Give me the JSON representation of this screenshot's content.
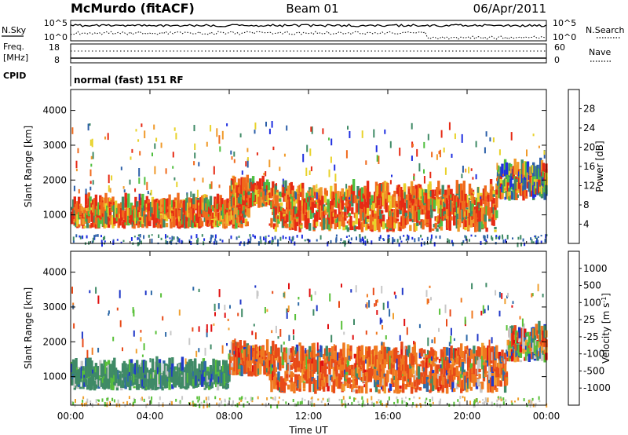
{
  "header": {
    "station": "McMurdo (fitACF)",
    "beam": "Beam 01",
    "date": "06/Apr/2011"
  },
  "noise_panel": {
    "left_label": "N.Sky",
    "right_label": "N.Search",
    "left_ticks": [
      "10^5",
      "10^0"
    ],
    "right_ticks": [
      "10^5",
      "10^0"
    ]
  },
  "freq_panel": {
    "left_label_1": "Freq.",
    "left_label_2": "[MHz]",
    "left_ticks": [
      "18",
      "8"
    ],
    "right_ticks": [
      "60",
      "0"
    ],
    "right_label": "Nave"
  },
  "cpid_panel": {
    "label": "CPID",
    "text": "normal (fast) 151 RF"
  },
  "chart_data": [
    {
      "type": "heatmap",
      "name": "power",
      "xlabel": "",
      "ylabel": "Slant Range [km]",
      "x_ticks": [
        "00:00",
        "04:00",
        "08:00",
        "12:00",
        "16:00",
        "20:00",
        "00:00"
      ],
      "y_ticks": [
        "1000",
        "2000",
        "3000",
        "4000"
      ],
      "ylim": [
        180,
        4600
      ],
      "xlim_hours": [
        0,
        24
      ],
      "colorbar_label": "Power [dB]",
      "colorbar_ticks": [
        "4",
        "8",
        "12",
        "16",
        "20",
        "24",
        "28"
      ],
      "colorbar_colors": [
        "#1f2fe0",
        "#2c5fa8",
        "#3f8a66",
        "#4fbf3f",
        "#e8d22a",
        "#f09a2a",
        "#f06a1c",
        "#e62a14"
      ],
      "echo_bands": [
        {
          "start_h": 0.0,
          "end_h": 9.0,
          "lo_km": 600,
          "hi_km": 1500,
          "level": "high"
        },
        {
          "start_h": 8.0,
          "end_h": 10.0,
          "lo_km": 1200,
          "hi_km": 2000,
          "level": "high"
        },
        {
          "start_h": 10.0,
          "end_h": 21.5,
          "lo_km": 500,
          "hi_km": 2100,
          "level": "high"
        },
        {
          "start_h": 21.5,
          "end_h": 24.0,
          "lo_km": 1400,
          "hi_km": 2600,
          "level": "mixed"
        }
      ]
    },
    {
      "type": "heatmap",
      "name": "velocity",
      "xlabel": "Time UT",
      "ylabel": "Slant Range [km]",
      "x_ticks": [
        "00:00",
        "04:00",
        "08:00",
        "12:00",
        "16:00",
        "20:00",
        "00:00"
      ],
      "y_ticks": [
        "1000",
        "2000",
        "3000",
        "4000"
      ],
      "ylim": [
        180,
        4600
      ],
      "xlim_hours": [
        0,
        24
      ],
      "colorbar_label": "Velocity [m s",
      "colorbar_label_sup": "-1",
      "colorbar_label_end": "]",
      "colorbar_ticks": [
        "1000",
        "500",
        "100",
        "25",
        "-25",
        "-100",
        "-500",
        "-1000"
      ],
      "colorbar_colors": [
        "#2038c8",
        "#2f6aa8",
        "#3f8a66",
        "#58c038",
        "#c8c8c8",
        "#f0a030",
        "#f07a20",
        "#e84a18",
        "#e01010"
      ],
      "echo_bands": [
        {
          "start_h": 0.0,
          "end_h": 8.0,
          "lo_km": 600,
          "hi_km": 1400,
          "level": "green"
        },
        {
          "start_h": 8.0,
          "end_h": 10.0,
          "lo_km": 1000,
          "hi_km": 2000,
          "level": "orange"
        },
        {
          "start_h": 10.0,
          "end_h": 22.0,
          "lo_km": 500,
          "hi_km": 2100,
          "level": "orange"
        },
        {
          "start_h": 22.0,
          "end_h": 24.0,
          "lo_km": 1400,
          "hi_km": 2600,
          "level": "mixed"
        }
      ]
    }
  ]
}
